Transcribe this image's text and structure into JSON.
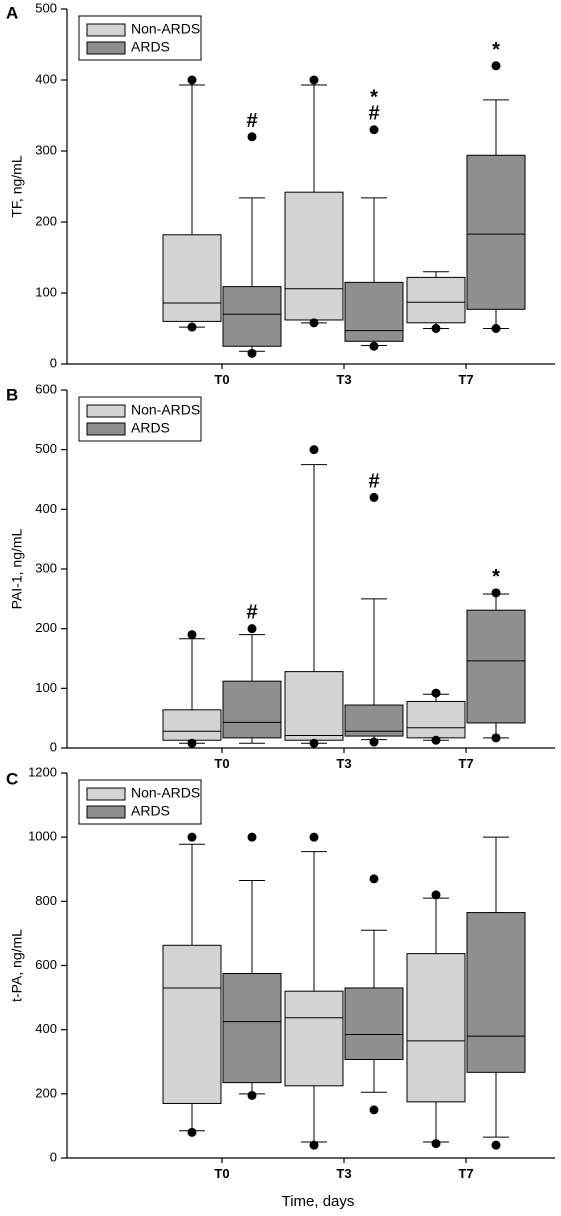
{
  "chart_data": [
    {
      "type": "box",
      "panel": "A",
      "ylabel": "TF, ng/mL",
      "xlabel": "",
      "ylim": [
        0,
        500
      ],
      "yticks": [
        0,
        100,
        200,
        300,
        400,
        500
      ],
      "categories": [
        "T0",
        "T3",
        "T7"
      ],
      "legend": {
        "position": "top-left",
        "entries": [
          "Non-ARDS",
          "ARDS"
        ]
      },
      "colors": {
        "Non-ARDS": "#d3d3d3",
        "ARDS": "#8f8f8f"
      },
      "series": [
        {
          "name": "Non-ARDS",
          "boxes": [
            {
              "whisker_low": 52,
              "q1": 60,
              "median": 86,
              "q3": 182,
              "whisker_high": 393,
              "outliers": [
                52,
                400
              ],
              "mark": ""
            },
            {
              "whisker_low": 58,
              "q1": 62,
              "median": 106,
              "q3": 242,
              "whisker_high": 393,
              "outliers": [
                58,
                400
              ],
              "mark": ""
            },
            {
              "whisker_low": 50,
              "q1": 58,
              "median": 87,
              "q3": 122,
              "whisker_high": 130,
              "outliers": [
                50
              ],
              "mark": ""
            }
          ]
        },
        {
          "name": "ARDS",
          "boxes": [
            {
              "whisker_low": 18,
              "q1": 25,
              "median": 70,
              "q3": 109,
              "whisker_high": 234,
              "outliers": [
                15,
                320
              ],
              "mark": "#"
            },
            {
              "whisker_low": 26,
              "q1": 32,
              "median": 47,
              "q3": 115,
              "whisker_high": 234,
              "outliers": [
                25,
                330
              ],
              "mark": "#*"
            },
            {
              "whisker_low": 50,
              "q1": 77,
              "median": 183,
              "q3": 294,
              "whisker_high": 372,
              "outliers": [
                50,
                420
              ],
              "mark": "*"
            }
          ]
        }
      ]
    },
    {
      "type": "box",
      "panel": "B",
      "ylabel": "PAI-1, ng/mL",
      "xlabel": "",
      "ylim": [
        0,
        600
      ],
      "yticks": [
        0,
        100,
        200,
        300,
        400,
        500,
        600
      ],
      "categories": [
        "T0",
        "T3",
        "T7"
      ],
      "legend": {
        "position": "top-left",
        "entries": [
          "Non-ARDS",
          "ARDS"
        ]
      },
      "colors": {
        "Non-ARDS": "#d3d3d3",
        "ARDS": "#8f8f8f"
      },
      "series": [
        {
          "name": "Non-ARDS",
          "boxes": [
            {
              "whisker_low": 8,
              "q1": 13,
              "median": 28,
              "q3": 64,
              "whisker_high": 183,
              "outliers": [
                8,
                190
              ],
              "mark": ""
            },
            {
              "whisker_low": 8,
              "q1": 13,
              "median": 21,
              "q3": 128,
              "whisker_high": 475,
              "outliers": [
                8,
                500
              ],
              "mark": ""
            },
            {
              "whisker_low": 13,
              "q1": 17,
              "median": 34,
              "q3": 78,
              "whisker_high": 90,
              "outliers": [
                13,
                92
              ],
              "mark": ""
            }
          ]
        },
        {
          "name": "ARDS",
          "boxes": [
            {
              "whisker_low": 8,
              "q1": 17,
              "median": 43,
              "q3": 112,
              "whisker_high": 190,
              "outliers": [
                200
              ],
              "mark": "#"
            },
            {
              "whisker_low": 14,
              "q1": 20,
              "median": 28,
              "q3": 72,
              "whisker_high": 250,
              "outliers": [
                10,
                420
              ],
              "mark": "#"
            },
            {
              "whisker_low": 17,
              "q1": 42,
              "median": 146,
              "q3": 231,
              "whisker_high": 258,
              "outliers": [
                17,
                260
              ],
              "mark": "*"
            }
          ]
        }
      ]
    },
    {
      "type": "box",
      "panel": "C",
      "ylabel": "t-PA, ng/mL",
      "xlabel": "Time, days",
      "ylim": [
        0,
        1200
      ],
      "yticks": [
        0,
        200,
        400,
        600,
        800,
        1000,
        1200
      ],
      "categories": [
        "T0",
        "T3",
        "T7"
      ],
      "legend": {
        "position": "top-left",
        "entries": [
          "Non-ARDS",
          "ARDS"
        ]
      },
      "colors": {
        "Non-ARDS": "#d3d3d3",
        "ARDS": "#8f8f8f"
      },
      "series": [
        {
          "name": "Non-ARDS",
          "boxes": [
            {
              "whisker_low": 85,
              "q1": 170,
              "median": 530,
              "q3": 663,
              "whisker_high": 978,
              "outliers": [
                80,
                1000
              ],
              "mark": ""
            },
            {
              "whisker_low": 50,
              "q1": 225,
              "median": 437,
              "q3": 520,
              "whisker_high": 955,
              "outliers": [
                40,
                1000
              ],
              "mark": ""
            },
            {
              "whisker_low": 50,
              "q1": 175,
              "median": 365,
              "q3": 637,
              "whisker_high": 810,
              "outliers": [
                45,
                820
              ],
              "mark": ""
            }
          ]
        },
        {
          "name": "ARDS",
          "boxes": [
            {
              "whisker_low": 200,
              "q1": 235,
              "median": 425,
              "q3": 575,
              "whisker_high": 865,
              "outliers": [
                195,
                1000
              ],
              "mark": ""
            },
            {
              "whisker_low": 205,
              "q1": 307,
              "median": 385,
              "q3": 530,
              "whisker_high": 710,
              "outliers": [
                150,
                870
              ],
              "mark": ""
            },
            {
              "whisker_low": 65,
              "q1": 267,
              "median": 380,
              "q3": 765,
              "whisker_high": 1000,
              "outliers": [
                40
              ],
              "mark": ""
            }
          ]
        }
      ]
    }
  ]
}
